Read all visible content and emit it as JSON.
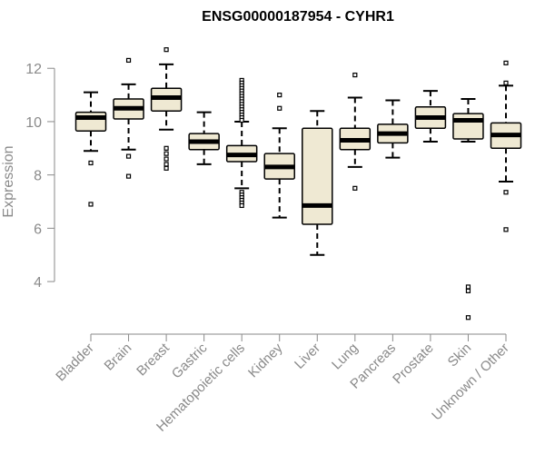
{
  "chart_data": {
    "type": "boxplot",
    "title": "ENSG00000187954 - CYHR1",
    "xlabel": "",
    "ylabel": "Expression",
    "ylim": [
      2.3,
      13.2
    ],
    "yticks": [
      4,
      6,
      8,
      10,
      12
    ],
    "box_fill": "#efe9d3",
    "categories": [
      "Bladder",
      "Brain",
      "Breast",
      "Gastric",
      "Hematopoietic cells",
      "Kidney",
      "Liver",
      "Lung",
      "Pancreas",
      "Prostate",
      "Skin",
      "Unknown / Other"
    ],
    "boxes": [
      {
        "category": "Bladder",
        "whisker_low": 8.9,
        "q1": 9.65,
        "median": 10.15,
        "q3": 10.35,
        "whisker_high": 11.1,
        "outliers": [
          8.45,
          6.9
        ]
      },
      {
        "category": "Brain",
        "whisker_low": 8.95,
        "q1": 10.1,
        "median": 10.5,
        "q3": 10.85,
        "whisker_high": 11.4,
        "outliers": [
          12.3,
          8.7,
          7.95
        ]
      },
      {
        "category": "Breast",
        "whisker_low": 9.7,
        "q1": 10.4,
        "median": 10.9,
        "q3": 11.25,
        "whisker_high": 12.15,
        "outliers": [
          12.7,
          9.0,
          8.8,
          8.6,
          8.4,
          8.25
        ]
      },
      {
        "category": "Gastric",
        "whisker_low": 8.4,
        "q1": 8.95,
        "median": 9.25,
        "q3": 9.55,
        "whisker_high": 10.35,
        "outliers": []
      },
      {
        "category": "Hematopoietic cells",
        "whisker_low": 7.5,
        "q1": 8.5,
        "median": 8.75,
        "q3": 9.1,
        "whisker_high": 10.0,
        "outliers": [
          11.55,
          11.45,
          11.35,
          11.25,
          11.15,
          11.05,
          10.95,
          10.85,
          10.75,
          10.65,
          10.55,
          10.45,
          10.35,
          10.25,
          10.15,
          10.05,
          7.35,
          7.25,
          7.15,
          7.05,
          6.95,
          6.85
        ]
      },
      {
        "category": "Kidney",
        "whisker_low": 6.4,
        "q1": 7.85,
        "median": 8.3,
        "q3": 8.8,
        "whisker_high": 9.75,
        "outliers": [
          11.0,
          10.5
        ]
      },
      {
        "category": "Liver",
        "whisker_low": 5.0,
        "q1": 6.15,
        "median": 6.85,
        "q3": 9.75,
        "whisker_high": 10.4,
        "outliers": []
      },
      {
        "category": "Lung",
        "whisker_low": 8.3,
        "q1": 8.95,
        "median": 9.3,
        "q3": 9.75,
        "whisker_high": 10.9,
        "outliers": [
          11.75,
          7.5
        ]
      },
      {
        "category": "Pancreas",
        "whisker_low": 8.65,
        "q1": 9.2,
        "median": 9.55,
        "q3": 9.9,
        "whisker_high": 10.8,
        "outliers": []
      },
      {
        "category": "Prostate",
        "whisker_low": 9.25,
        "q1": 9.75,
        "median": 10.15,
        "q3": 10.55,
        "whisker_high": 11.15,
        "outliers": []
      },
      {
        "category": "Skin",
        "whisker_low": 9.25,
        "q1": 9.35,
        "median": 10.05,
        "q3": 10.3,
        "whisker_high": 10.85,
        "outliers": [
          3.8,
          3.65,
          2.65
        ]
      },
      {
        "category": "Unknown / Other",
        "whisker_low": 7.75,
        "q1": 9.0,
        "median": 9.5,
        "q3": 9.95,
        "whisker_high": 11.35,
        "outliers": [
          12.2,
          11.45,
          7.35,
          5.95
        ]
      }
    ]
  }
}
